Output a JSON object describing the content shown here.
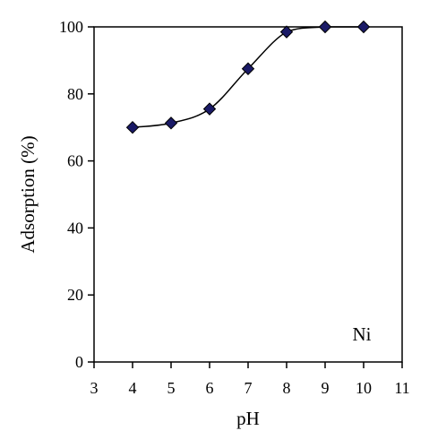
{
  "chart_data": {
    "type": "scatter",
    "title": "",
    "xlabel": "pH",
    "ylabel": "Adsorption (%)",
    "xlim": [
      3,
      11
    ],
    "ylim": [
      0,
      100
    ],
    "xticks": [
      "3",
      "4",
      "5",
      "6",
      "7",
      "8",
      "9",
      "10",
      "11"
    ],
    "yticks": [
      "0",
      "20",
      "40",
      "60",
      "80",
      "100"
    ],
    "grid": false,
    "legend": "none",
    "annotation": "Ni",
    "marker": "diamond",
    "marker_color": "#1a1a66",
    "line_color": "#000000",
    "series": [
      {
        "x": [
          4,
          5,
          6,
          7,
          8,
          9,
          10
        ],
        "y": [
          70,
          71.3,
          75.5,
          87.5,
          98.5,
          100,
          100
        ]
      }
    ]
  }
}
